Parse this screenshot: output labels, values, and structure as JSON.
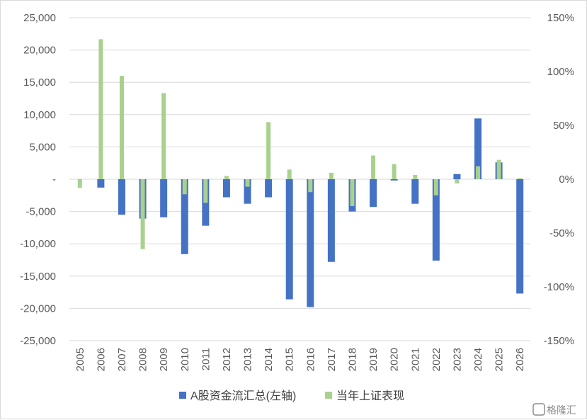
{
  "chart_data": {
    "type": "bar",
    "categories": [
      "2005",
      "2006",
      "2007",
      "2008",
      "2009",
      "2010",
      "2011",
      "2012",
      "2013",
      "2014",
      "2015",
      "2016",
      "2017",
      "2018",
      "2019",
      "2020",
      "2021",
      "2022",
      "2023",
      "2024",
      "2025",
      "2026"
    ],
    "series": [
      {
        "name": "A股资金流汇总(左轴)",
        "axis": "left",
        "color": "#4472c4",
        "values": [
          0,
          -1300,
          -5500,
          -6100,
          -5900,
          -11600,
          -7200,
          -2800,
          -3800,
          -2800,
          -18600,
          -19800,
          -12800,
          -5000,
          -4300,
          -200,
          -3800,
          -12600,
          800,
          9400,
          2600,
          -17700
        ]
      },
      {
        "name": "当年上证表现",
        "axis": "right",
        "color": "#a9d18e",
        "values": [
          -8,
          130,
          96,
          -65,
          80,
          -14,
          -22,
          3,
          -7,
          53,
          9,
          -12,
          6,
          -25,
          22,
          14,
          4,
          -15,
          -4,
          12,
          18,
          1
        ]
      }
    ],
    "y_left": {
      "min": -25000,
      "max": 25000,
      "step": 5000,
      "tick_labels": [
        "25,000",
        "20,000",
        "15,000",
        "10,000",
        "5,000",
        "-",
        "-5,000",
        "-10,000",
        "-15,000",
        "-20,000",
        "-25,000"
      ]
    },
    "y_right": {
      "min": -150,
      "max": 150,
      "step": 50,
      "unit": "%",
      "tick_labels": [
        "150%",
        "100%",
        "50%",
        "0%",
        "-50%",
        "-100%",
        "-150%"
      ]
    },
    "legend_position": "bottom",
    "gridlines": true
  },
  "watermark": "格隆汇"
}
